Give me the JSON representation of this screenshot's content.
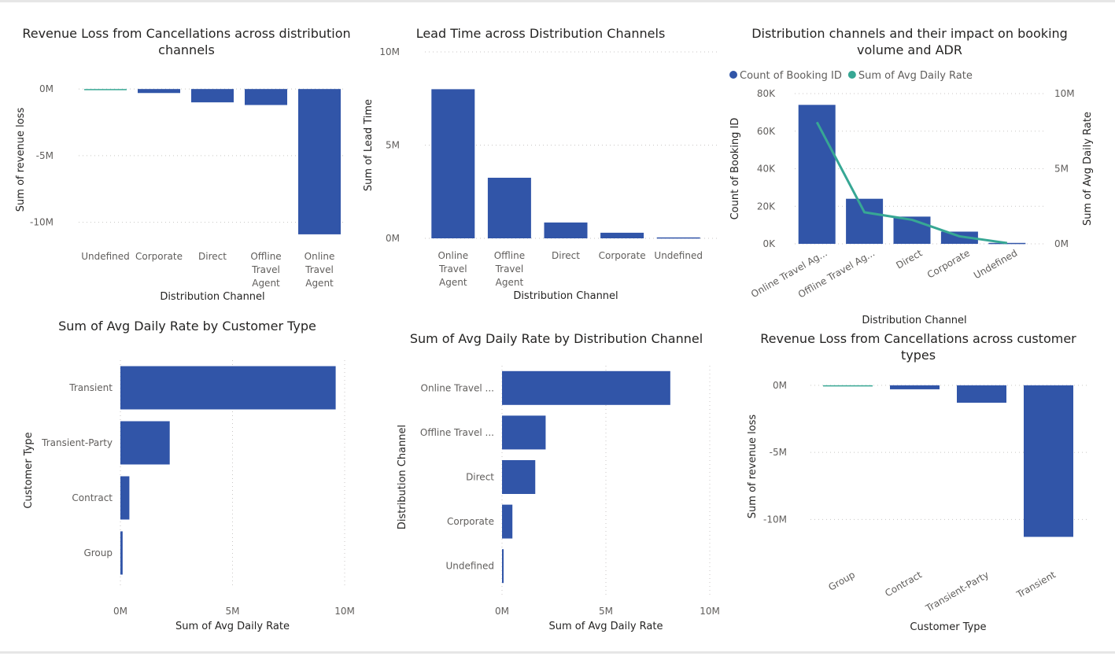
{
  "colors": {
    "bar": "#3155a8",
    "line": "#37a794",
    "text": "#252423",
    "tick": "#605e5c"
  },
  "chart_data": [
    {
      "id": "c1",
      "type": "bar",
      "title": [
        "Revenue Loss from Cancellations across distribution",
        "channels"
      ],
      "categories": [
        [
          "Undefined"
        ],
        [
          "Corporate"
        ],
        [
          "Direct"
        ],
        [
          "Offline",
          "Travel",
          "Agent"
        ],
        [
          "Online",
          "Travel",
          "Agent"
        ]
      ],
      "values": [
        -0.05,
        -0.3,
        -1.0,
        -1.2,
        -10.9
      ],
      "xlabel": "Distribution Channel",
      "ylabel": "Sum of revenue loss",
      "ylim": [
        -11.2,
        0.6
      ],
      "yticks": [
        {
          "v": 0,
          "label": "0M"
        },
        {
          "v": -5,
          "label": "-5M"
        },
        {
          "v": -10,
          "label": "-10M"
        }
      ],
      "small_color_index": 0
    },
    {
      "id": "c2",
      "type": "bar",
      "title": [
        "Lead Time across Distribution Channels"
      ],
      "categories": [
        [
          "Online",
          "Travel",
          "Agent"
        ],
        [
          "Offline",
          "Travel",
          "Agent"
        ],
        [
          "Direct"
        ],
        [
          "Corporate"
        ],
        [
          "Undefined"
        ]
      ],
      "values": [
        8.0,
        3.25,
        0.85,
        0.3,
        0.05
      ],
      "xlabel": "Distribution Channel",
      "ylabel": "Sum of Lead Time",
      "ylim": [
        0,
        10
      ],
      "yticks": [
        {
          "v": 0,
          "label": "0M"
        },
        {
          "v": 5,
          "label": "5M"
        },
        {
          "v": 10,
          "label": "10M"
        }
      ]
    },
    {
      "id": "c3",
      "type": "bar+line",
      "title": [
        "Distribution channels and their impact on booking",
        "volume and ADR"
      ],
      "categories": [
        "Online Travel Ag...",
        "Offline Travel Ag...",
        "Direct",
        "Corporate",
        "Undefined"
      ],
      "series": [
        {
          "name": "Count of Booking ID",
          "axis": "left",
          "values": [
            74000,
            24000,
            14500,
            6500,
            500
          ]
        },
        {
          "name": "Sum of Avg Daily Rate",
          "axis": "right",
          "values": [
            8.1,
            2.1,
            1.6,
            0.5,
            0.05
          ]
        }
      ],
      "xlabel": "Distribution Channel",
      "ylabel": "Count of Booking ID",
      "y2label": "Sum of Avg Daily Rate",
      "ylim": [
        0,
        80000
      ],
      "y2lim": [
        0,
        10
      ],
      "yticks": [
        {
          "v": 0,
          "label": "0K"
        },
        {
          "v": 20000,
          "label": "20K"
        },
        {
          "v": 40000,
          "label": "40K"
        },
        {
          "v": 60000,
          "label": "60K"
        },
        {
          "v": 80000,
          "label": "80K"
        }
      ],
      "y2ticks": [
        {
          "v": 0,
          "label": "0M"
        },
        {
          "v": 5,
          "label": "5M"
        },
        {
          "v": 10,
          "label": "10M"
        }
      ],
      "legend_position": "top-left"
    },
    {
      "id": "c4",
      "type": "hbar",
      "title": [
        "Sum of Avg Daily Rate by Customer Type"
      ],
      "categories": [
        "Transient",
        "Transient-Party",
        "Contract",
        "Group"
      ],
      "values": [
        9.6,
        2.2,
        0.4,
        0.1
      ],
      "xlabel": "Sum of Avg Daily Rate",
      "ylabel": "Customer Type",
      "xlim": [
        0,
        10
      ],
      "xticks": [
        {
          "v": 0,
          "label": "0M"
        },
        {
          "v": 5,
          "label": "5M"
        },
        {
          "v": 10,
          "label": "10M"
        }
      ]
    },
    {
      "id": "c5",
      "type": "hbar",
      "title": [
        "Sum of Avg Daily Rate by Distribution Channel"
      ],
      "categories": [
        "Online Travel ...",
        "Offline Travel ...",
        "Direct",
        "Corporate",
        "Undefined"
      ],
      "values": [
        8.1,
        2.1,
        1.6,
        0.5,
        0.05
      ],
      "xlabel": "Sum of Avg Daily Rate",
      "ylabel": "Distribution Channel",
      "xlim": [
        0,
        10
      ],
      "xticks": [
        {
          "v": 0,
          "label": "0M"
        },
        {
          "v": 5,
          "label": "5M"
        },
        {
          "v": 10,
          "label": "10M"
        }
      ]
    },
    {
      "id": "c6",
      "type": "bar",
      "title": [
        "Revenue Loss from Cancellations across customer",
        "types"
      ],
      "categories": [
        "Group",
        "Contract",
        "Transient-Party",
        "Transient"
      ],
      "values": [
        -0.05,
        -0.3,
        -1.3,
        -11.3
      ],
      "xlabel": "Customer Type",
      "ylabel": "Sum of revenue loss",
      "ylim": [
        -12.5,
        0.4
      ],
      "yticks": [
        {
          "v": 0,
          "label": "0M"
        },
        {
          "v": -5,
          "label": "-5M"
        },
        {
          "v": -10,
          "label": "-10M"
        }
      ],
      "small_color_index": 0,
      "rotated_labels": true
    }
  ]
}
